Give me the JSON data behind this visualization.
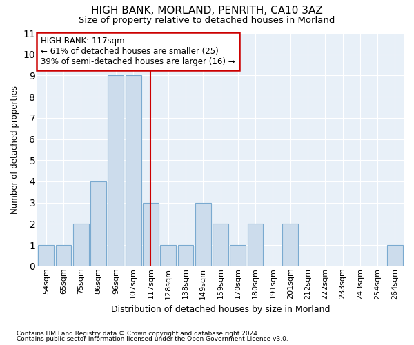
{
  "title1": "HIGH BANK, MORLAND, PENRITH, CA10 3AZ",
  "title2": "Size of property relative to detached houses in Morland",
  "xlabel": "Distribution of detached houses by size in Morland",
  "ylabel": "Number of detached properties",
  "categories": [
    "54sqm",
    "65sqm",
    "75sqm",
    "86sqm",
    "96sqm",
    "107sqm",
    "117sqm",
    "128sqm",
    "138sqm",
    "149sqm",
    "159sqm",
    "170sqm",
    "180sqm",
    "191sqm",
    "201sqm",
    "212sqm",
    "222sqm",
    "233sqm",
    "243sqm",
    "254sqm",
    "264sqm"
  ],
  "values": [
    1,
    1,
    2,
    4,
    9,
    9,
    3,
    1,
    1,
    3,
    2,
    1,
    2,
    0,
    2,
    0,
    0,
    0,
    0,
    0,
    1
  ],
  "bar_color": "#ccdcec",
  "bar_edge_color": "#7aaad0",
  "highlight_index": 6,
  "annotation_title": "HIGH BANK: 117sqm",
  "annotation_line1": "← 61% of detached houses are smaller (25)",
  "annotation_line2": "39% of semi-detached houses are larger (16) →",
  "ylim": [
    0,
    11
  ],
  "yticks": [
    0,
    1,
    2,
    3,
    4,
    5,
    6,
    7,
    8,
    9,
    10,
    11
  ],
  "footer1": "Contains HM Land Registry data © Crown copyright and database right 2024.",
  "footer2": "Contains public sector information licensed under the Open Government Licence v3.0.",
  "bg_color": "#ffffff",
  "plot_bg_color": "#e8f0f8",
  "grid_color": "#ffffff",
  "annotation_box_color": "#ffffff",
  "annotation_box_edge": "#cc0000",
  "red_line_color": "#cc0000"
}
